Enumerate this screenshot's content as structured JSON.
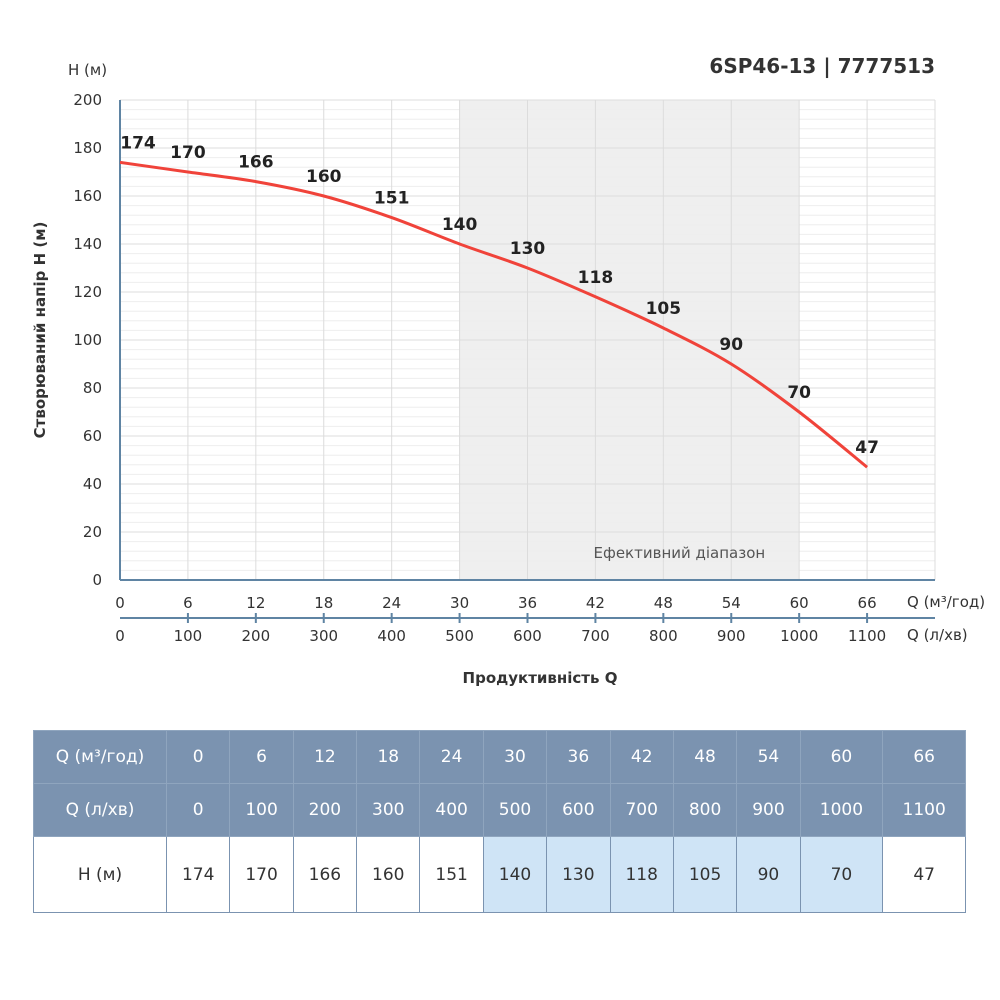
{
  "title": "6SP46-13 | 7777513",
  "chart_data": {
    "type": "line",
    "y_unit_label": "H (м)",
    "ylabel": "Створюваний напір H (м)",
    "xlabel": "Продуктивність Q",
    "x_unit_label": "Q (м³/год)",
    "x2_unit_label": "Q (л/хв)",
    "ylim": [
      0,
      200
    ],
    "xlim": [
      0,
      72
    ],
    "yticks": [
      0,
      20,
      40,
      60,
      80,
      100,
      120,
      140,
      160,
      180,
      200
    ],
    "x": [
      0,
      6,
      12,
      18,
      24,
      30,
      36,
      42,
      48,
      54,
      60,
      66
    ],
    "x2": [
      0,
      100,
      200,
      300,
      400,
      500,
      600,
      700,
      800,
      900,
      1000,
      1100
    ],
    "values": [
      174,
      170,
      166,
      160,
      151,
      140,
      130,
      118,
      105,
      90,
      70,
      47
    ],
    "line_color": "#f0433a",
    "efficient_range": {
      "label": "Ефективний діапазон",
      "from": 30,
      "to": 60
    },
    "grid": true
  },
  "table": {
    "rows": [
      {
        "label": "Q (м³/год)",
        "values": [
          "0",
          "6",
          "12",
          "18",
          "24",
          "30",
          "36",
          "42",
          "48",
          "54",
          "60",
          "66"
        ]
      },
      {
        "label": "Q (л/хв)",
        "values": [
          "0",
          "100",
          "200",
          "300",
          "400",
          "500",
          "600",
          "700",
          "800",
          "900",
          "1000",
          "1100"
        ]
      },
      {
        "label": "H (м)",
        "values": [
          "174",
          "170",
          "166",
          "160",
          "151",
          "140",
          "130",
          "118",
          "105",
          "90",
          "70",
          "47"
        ]
      }
    ],
    "highlight_color": "#cfe4f6",
    "header_color": "#7b93b0"
  }
}
